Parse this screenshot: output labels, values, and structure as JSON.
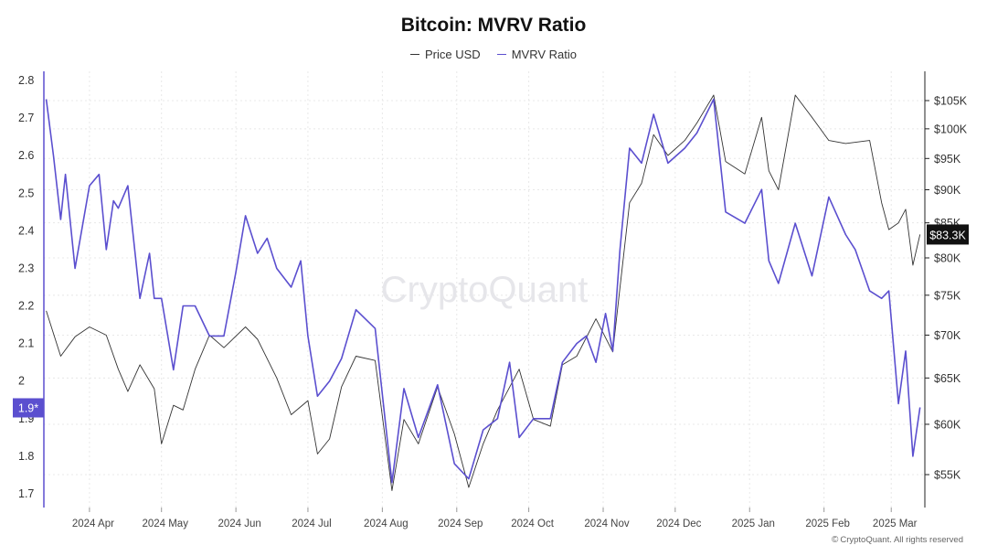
{
  "chart_data": {
    "type": "line",
    "title": "Bitcoin: MVRV Ratio",
    "watermark": "CryptoQuant",
    "copyright": "CryptoQuant. All rights reserved",
    "x_ticks": [
      "2024 Apr",
      "2024 May",
      "2024 Jun",
      "2024 Jul",
      "2024 Aug",
      "2024 Sep",
      "2024 Oct",
      "2024 Nov",
      "2024 Dec",
      "2025 Jan",
      "2025 Feb",
      "2025 Mar"
    ],
    "left_axis": {
      "label": "MVRV Ratio",
      "ticks": [
        "2.8",
        "2.7",
        "2.6",
        "2.5",
        "2.4",
        "2.3",
        "2.2",
        "2.1",
        "2",
        "1.9",
        "1.8",
        "1.7"
      ],
      "ylim": [
        1.7,
        2.8
      ],
      "current_label": "1.9*",
      "current_value": 1.93
    },
    "right_axis": {
      "label": "Price USD",
      "ticks": [
        "$105K",
        "$100K",
        "$95K",
        "$90K",
        "$85K",
        "$80K",
        "$75K",
        "$70K",
        "$65K",
        "$60K",
        "$55K"
      ],
      "current_label": "$83.3K",
      "current_value": 83300
    },
    "series": [
      {
        "name": "Price USD",
        "color": "#333333",
        "axis": "right",
        "x": [
          "2024-03-14",
          "2024-03-20",
          "2024-03-26",
          "2024-04-01",
          "2024-04-08",
          "2024-04-13",
          "2024-04-17",
          "2024-04-22",
          "2024-04-28",
          "2024-05-01",
          "2024-05-06",
          "2024-05-10",
          "2024-05-15",
          "2024-05-21",
          "2024-05-27",
          "2024-06-05",
          "2024-06-10",
          "2024-06-18",
          "2024-06-24",
          "2024-07-01",
          "2024-07-05",
          "2024-07-10",
          "2024-07-15",
          "2024-07-21",
          "2024-07-29",
          "2024-08-05",
          "2024-08-10",
          "2024-08-16",
          "2024-08-24",
          "2024-08-31",
          "2024-09-06",
          "2024-09-12",
          "2024-09-18",
          "2024-09-27",
          "2024-10-03",
          "2024-10-10",
          "2024-10-15",
          "2024-10-21",
          "2024-10-29",
          "2024-11-05",
          "2024-11-08",
          "2024-11-12",
          "2024-11-17",
          "2024-11-22",
          "2024-11-28",
          "2024-12-05",
          "2024-12-10",
          "2024-12-17",
          "2024-12-22",
          "2024-12-30",
          "2025-01-06",
          "2025-01-09",
          "2025-01-13",
          "2025-01-20",
          "2025-01-27",
          "2025-02-03",
          "2025-02-10",
          "2025-02-20",
          "2025-02-25",
          "2025-02-28",
          "2025-03-04",
          "2025-03-07",
          "2025-03-10",
          "2025-03-13"
        ],
        "values": [
          73000,
          67500,
          69800,
          71000,
          70000,
          66000,
          63500,
          66500,
          63800,
          58000,
          62000,
          61500,
          66000,
          70000,
          68500,
          71000,
          69500,
          65000,
          61000,
          62500,
          57000,
          58500,
          64000,
          67500,
          67000,
          53500,
          60500,
          58000,
          64000,
          59000,
          53800,
          58000,
          61500,
          66000,
          60500,
          59800,
          66500,
          67500,
          72000,
          68000,
          76000,
          88000,
          91000,
          99000,
          95500,
          98000,
          101000,
          106000,
          94500,
          92500,
          102000,
          93000,
          90000,
          106000,
          102000,
          98000,
          97500,
          98000,
          88000,
          84000,
          85000,
          87000,
          79000,
          83300
        ]
      },
      {
        "name": "MVRV Ratio",
        "color": "#5b4fcf",
        "axis": "left",
        "x": [
          "2024-03-14",
          "2024-03-17",
          "2024-03-20",
          "2024-03-22",
          "2024-03-26",
          "2024-04-01",
          "2024-04-05",
          "2024-04-08",
          "2024-04-11",
          "2024-04-13",
          "2024-04-17",
          "2024-04-22",
          "2024-04-26",
          "2024-04-28",
          "2024-05-01",
          "2024-05-06",
          "2024-05-10",
          "2024-05-15",
          "2024-05-21",
          "2024-05-27",
          "2024-06-01",
          "2024-06-05",
          "2024-06-10",
          "2024-06-14",
          "2024-06-18",
          "2024-06-24",
          "2024-06-28",
          "2024-07-01",
          "2024-07-05",
          "2024-07-10",
          "2024-07-15",
          "2024-07-21",
          "2024-07-29",
          "2024-08-05",
          "2024-08-10",
          "2024-08-16",
          "2024-08-24",
          "2024-08-31",
          "2024-09-06",
          "2024-09-12",
          "2024-09-18",
          "2024-09-23",
          "2024-09-27",
          "2024-10-03",
          "2024-10-10",
          "2024-10-15",
          "2024-10-21",
          "2024-10-25",
          "2024-10-29",
          "2024-11-02",
          "2024-11-05",
          "2024-11-08",
          "2024-11-12",
          "2024-11-17",
          "2024-11-22",
          "2024-11-28",
          "2024-12-05",
          "2024-12-10",
          "2024-12-17",
          "2024-12-22",
          "2024-12-30",
          "2025-01-06",
          "2025-01-09",
          "2025-01-13",
          "2025-01-20",
          "2025-01-27",
          "2025-02-03",
          "2025-02-10",
          "2025-02-14",
          "2025-02-20",
          "2025-02-25",
          "2025-02-28",
          "2025-03-04",
          "2025-03-07",
          "2025-03-10",
          "2025-03-13"
        ],
        "values": [
          2.75,
          2.6,
          2.43,
          2.55,
          2.3,
          2.52,
          2.55,
          2.35,
          2.48,
          2.46,
          2.52,
          2.22,
          2.34,
          2.22,
          2.22,
          2.03,
          2.2,
          2.2,
          2.12,
          2.12,
          2.29,
          2.44,
          2.34,
          2.38,
          2.3,
          2.25,
          2.32,
          2.12,
          1.96,
          2.0,
          2.06,
          2.19,
          2.14,
          1.73,
          1.98,
          1.85,
          1.99,
          1.78,
          1.74,
          1.87,
          1.9,
          2.05,
          1.85,
          1.9,
          1.9,
          2.05,
          2.1,
          2.12,
          2.05,
          2.18,
          2.08,
          2.35,
          2.62,
          2.58,
          2.71,
          2.58,
          2.62,
          2.66,
          2.75,
          2.45,
          2.42,
          2.51,
          2.32,
          2.26,
          2.42,
          2.28,
          2.49,
          2.39,
          2.35,
          2.24,
          2.22,
          2.24,
          1.94,
          2.08,
          1.8,
          1.93
        ]
      }
    ]
  }
}
